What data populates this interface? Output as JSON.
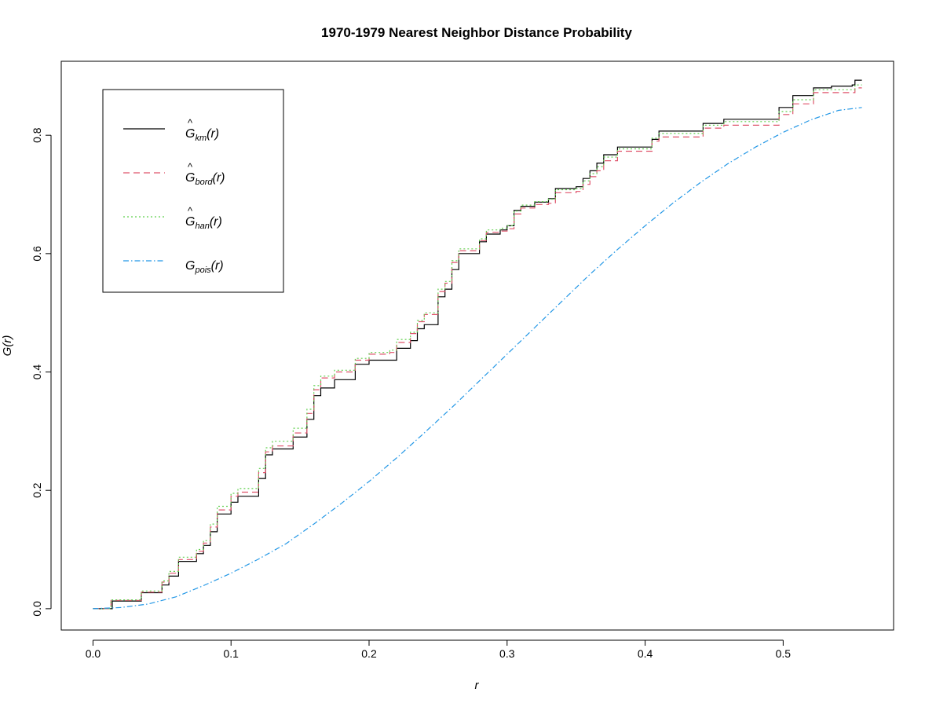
{
  "chart_data": {
    "type": "line",
    "title": "1970-1979 Nearest Neighbor Distance Probability",
    "xlabel": "r",
    "ylabel": "G(r)",
    "xlim": [
      -0.023,
      0.58
    ],
    "ylim": [
      -0.036,
      0.925
    ],
    "xticks": [
      0.0,
      0.1,
      0.2,
      0.3,
      0.4,
      0.5
    ],
    "xtick_labels": [
      "0.0",
      "0.1",
      "0.2",
      "0.3",
      "0.4",
      "0.5"
    ],
    "yticks": [
      0.0,
      0.2,
      0.4,
      0.6,
      0.8
    ],
    "ytick_labels": [
      "0.0",
      "0.2",
      "0.4",
      "0.6",
      "0.8"
    ],
    "grid": false,
    "legend_position": "top-left",
    "series": [
      {
        "name": "Ĝkm(r)",
        "base": "G",
        "hat": true,
        "sub": "km",
        "color": "#000000",
        "dash": "solid",
        "step": true,
        "points": [
          [
            0.0,
            0.0
          ],
          [
            0.012,
            0.0
          ],
          [
            0.014,
            0.013
          ],
          [
            0.033,
            0.013
          ],
          [
            0.035,
            0.027
          ],
          [
            0.046,
            0.027
          ],
          [
            0.05,
            0.04
          ],
          [
            0.055,
            0.055
          ],
          [
            0.06,
            0.055
          ],
          [
            0.062,
            0.08
          ],
          [
            0.072,
            0.08
          ],
          [
            0.075,
            0.093
          ],
          [
            0.08,
            0.107
          ],
          [
            0.085,
            0.13
          ],
          [
            0.09,
            0.16
          ],
          [
            0.095,
            0.16
          ],
          [
            0.1,
            0.18
          ],
          [
            0.105,
            0.19
          ],
          [
            0.115,
            0.19
          ],
          [
            0.12,
            0.22
          ],
          [
            0.125,
            0.26
          ],
          [
            0.13,
            0.27
          ],
          [
            0.14,
            0.27
          ],
          [
            0.145,
            0.29
          ],
          [
            0.15,
            0.29
          ],
          [
            0.155,
            0.32
          ],
          [
            0.16,
            0.36
          ],
          [
            0.165,
            0.373
          ],
          [
            0.17,
            0.373
          ],
          [
            0.175,
            0.387
          ],
          [
            0.185,
            0.387
          ],
          [
            0.19,
            0.413
          ],
          [
            0.2,
            0.42
          ],
          [
            0.215,
            0.42
          ],
          [
            0.22,
            0.44
          ],
          [
            0.23,
            0.453
          ],
          [
            0.235,
            0.473
          ],
          [
            0.24,
            0.48
          ],
          [
            0.245,
            0.48
          ],
          [
            0.25,
            0.527
          ],
          [
            0.255,
            0.54
          ],
          [
            0.26,
            0.573
          ],
          [
            0.265,
            0.6
          ],
          [
            0.275,
            0.6
          ],
          [
            0.28,
            0.62
          ],
          [
            0.285,
            0.633
          ],
          [
            0.295,
            0.64
          ],
          [
            0.3,
            0.647
          ],
          [
            0.305,
            0.673
          ],
          [
            0.31,
            0.68
          ],
          [
            0.32,
            0.687
          ],
          [
            0.33,
            0.693
          ],
          [
            0.335,
            0.71
          ],
          [
            0.35,
            0.713
          ],
          [
            0.355,
            0.727
          ],
          [
            0.36,
            0.74
          ],
          [
            0.365,
            0.753
          ],
          [
            0.37,
            0.767
          ],
          [
            0.38,
            0.78
          ],
          [
            0.4,
            0.78
          ],
          [
            0.405,
            0.793
          ],
          [
            0.41,
            0.807
          ],
          [
            0.44,
            0.807
          ],
          [
            0.442,
            0.82
          ],
          [
            0.455,
            0.82
          ],
          [
            0.457,
            0.827
          ],
          [
            0.495,
            0.827
          ],
          [
            0.497,
            0.847
          ],
          [
            0.505,
            0.847
          ],
          [
            0.507,
            0.867
          ],
          [
            0.52,
            0.867
          ],
          [
            0.522,
            0.88
          ],
          [
            0.535,
            0.883
          ],
          [
            0.55,
            0.885
          ],
          [
            0.552,
            0.893
          ],
          [
            0.557,
            0.893
          ]
        ]
      },
      {
        "name": "Ĝbord(r)",
        "base": "G",
        "hat": true,
        "sub": "bord",
        "color": "#df536b",
        "dash": "8,5",
        "step": true,
        "points": [
          [
            0.0,
            0.0
          ],
          [
            0.011,
            0.0
          ],
          [
            0.013,
            0.014
          ],
          [
            0.033,
            0.014
          ],
          [
            0.035,
            0.028
          ],
          [
            0.046,
            0.028
          ],
          [
            0.05,
            0.045
          ],
          [
            0.055,
            0.06
          ],
          [
            0.06,
            0.06
          ],
          [
            0.062,
            0.083
          ],
          [
            0.072,
            0.083
          ],
          [
            0.075,
            0.097
          ],
          [
            0.08,
            0.111
          ],
          [
            0.085,
            0.138
          ],
          [
            0.09,
            0.167
          ],
          [
            0.095,
            0.167
          ],
          [
            0.1,
            0.19
          ],
          [
            0.105,
            0.197
          ],
          [
            0.115,
            0.197
          ],
          [
            0.12,
            0.23
          ],
          [
            0.125,
            0.265
          ],
          [
            0.13,
            0.275
          ],
          [
            0.14,
            0.275
          ],
          [
            0.145,
            0.297
          ],
          [
            0.15,
            0.297
          ],
          [
            0.155,
            0.33
          ],
          [
            0.16,
            0.37
          ],
          [
            0.165,
            0.39
          ],
          [
            0.17,
            0.39
          ],
          [
            0.175,
            0.4
          ],
          [
            0.185,
            0.4
          ],
          [
            0.19,
            0.42
          ],
          [
            0.2,
            0.43
          ],
          [
            0.215,
            0.433
          ],
          [
            0.22,
            0.45
          ],
          [
            0.23,
            0.465
          ],
          [
            0.235,
            0.485
          ],
          [
            0.24,
            0.497
          ],
          [
            0.245,
            0.497
          ],
          [
            0.25,
            0.536
          ],
          [
            0.255,
            0.55
          ],
          [
            0.26,
            0.585
          ],
          [
            0.265,
            0.605
          ],
          [
            0.275,
            0.605
          ],
          [
            0.28,
            0.622
          ],
          [
            0.285,
            0.636
          ],
          [
            0.295,
            0.638
          ],
          [
            0.3,
            0.642
          ],
          [
            0.305,
            0.667
          ],
          [
            0.31,
            0.677
          ],
          [
            0.32,
            0.683
          ],
          [
            0.33,
            0.685
          ],
          [
            0.335,
            0.703
          ],
          [
            0.35,
            0.705
          ],
          [
            0.355,
            0.717
          ],
          [
            0.36,
            0.73
          ],
          [
            0.365,
            0.74
          ],
          [
            0.37,
            0.757
          ],
          [
            0.38,
            0.773
          ],
          [
            0.4,
            0.773
          ],
          [
            0.405,
            0.79
          ],
          [
            0.41,
            0.797
          ],
          [
            0.44,
            0.797
          ],
          [
            0.442,
            0.812
          ],
          [
            0.455,
            0.812
          ],
          [
            0.457,
            0.817
          ],
          [
            0.495,
            0.817
          ],
          [
            0.497,
            0.835
          ],
          [
            0.505,
            0.835
          ],
          [
            0.507,
            0.853
          ],
          [
            0.52,
            0.853
          ],
          [
            0.522,
            0.872
          ],
          [
            0.55,
            0.872
          ],
          [
            0.552,
            0.88
          ],
          [
            0.557,
            0.88
          ]
        ]
      },
      {
        "name": "Ĝhan(r)",
        "base": "G",
        "hat": true,
        "sub": "han",
        "color": "#61d04f",
        "dash": "2,3",
        "step": true,
        "points": [
          [
            0.0,
            0.0
          ],
          [
            0.011,
            0.0
          ],
          [
            0.013,
            0.015
          ],
          [
            0.033,
            0.015
          ],
          [
            0.035,
            0.03
          ],
          [
            0.046,
            0.03
          ],
          [
            0.05,
            0.047
          ],
          [
            0.055,
            0.063
          ],
          [
            0.06,
            0.063
          ],
          [
            0.062,
            0.087
          ],
          [
            0.072,
            0.087
          ],
          [
            0.075,
            0.1
          ],
          [
            0.08,
            0.115
          ],
          [
            0.085,
            0.143
          ],
          [
            0.09,
            0.173
          ],
          [
            0.095,
            0.173
          ],
          [
            0.1,
            0.195
          ],
          [
            0.105,
            0.203
          ],
          [
            0.115,
            0.203
          ],
          [
            0.12,
            0.237
          ],
          [
            0.125,
            0.272
          ],
          [
            0.13,
            0.283
          ],
          [
            0.14,
            0.283
          ],
          [
            0.145,
            0.305
          ],
          [
            0.15,
            0.305
          ],
          [
            0.155,
            0.337
          ],
          [
            0.16,
            0.377
          ],
          [
            0.165,
            0.393
          ],
          [
            0.17,
            0.393
          ],
          [
            0.175,
            0.403
          ],
          [
            0.185,
            0.403
          ],
          [
            0.19,
            0.423
          ],
          [
            0.2,
            0.433
          ],
          [
            0.215,
            0.437
          ],
          [
            0.22,
            0.455
          ],
          [
            0.23,
            0.467
          ],
          [
            0.235,
            0.487
          ],
          [
            0.24,
            0.5
          ],
          [
            0.245,
            0.5
          ],
          [
            0.25,
            0.54
          ],
          [
            0.255,
            0.553
          ],
          [
            0.26,
            0.588
          ],
          [
            0.265,
            0.608
          ],
          [
            0.275,
            0.608
          ],
          [
            0.28,
            0.625
          ],
          [
            0.285,
            0.64
          ],
          [
            0.295,
            0.643
          ],
          [
            0.3,
            0.647
          ],
          [
            0.305,
            0.672
          ],
          [
            0.31,
            0.682
          ],
          [
            0.32,
            0.688
          ],
          [
            0.33,
            0.692
          ],
          [
            0.335,
            0.708
          ],
          [
            0.35,
            0.71
          ],
          [
            0.355,
            0.723
          ],
          [
            0.36,
            0.735
          ],
          [
            0.365,
            0.747
          ],
          [
            0.37,
            0.763
          ],
          [
            0.38,
            0.777
          ],
          [
            0.4,
            0.777
          ],
          [
            0.405,
            0.795
          ],
          [
            0.41,
            0.803
          ],
          [
            0.44,
            0.803
          ],
          [
            0.442,
            0.817
          ],
          [
            0.455,
            0.817
          ],
          [
            0.457,
            0.823
          ],
          [
            0.495,
            0.823
          ],
          [
            0.497,
            0.84
          ],
          [
            0.505,
            0.84
          ],
          [
            0.507,
            0.86
          ],
          [
            0.52,
            0.86
          ],
          [
            0.522,
            0.877
          ],
          [
            0.55,
            0.877
          ],
          [
            0.552,
            0.885
          ],
          [
            0.557,
            0.885
          ]
        ]
      },
      {
        "name": "Gpois(r)",
        "base": "G",
        "hat": false,
        "sub": "pois",
        "color": "#2297e6",
        "dash": "7,3,1.5,3",
        "step": false,
        "points": [
          [
            0.0,
            0.0
          ],
          [
            0.02,
            0.002
          ],
          [
            0.04,
            0.008
          ],
          [
            0.06,
            0.02
          ],
          [
            0.08,
            0.039
          ],
          [
            0.1,
            0.06
          ],
          [
            0.12,
            0.084
          ],
          [
            0.14,
            0.11
          ],
          [
            0.16,
            0.143
          ],
          [
            0.18,
            0.178
          ],
          [
            0.2,
            0.215
          ],
          [
            0.22,
            0.255
          ],
          [
            0.24,
            0.297
          ],
          [
            0.26,
            0.34
          ],
          [
            0.28,
            0.385
          ],
          [
            0.3,
            0.43
          ],
          [
            0.32,
            0.475
          ],
          [
            0.34,
            0.52
          ],
          [
            0.36,
            0.565
          ],
          [
            0.38,
            0.607
          ],
          [
            0.4,
            0.647
          ],
          [
            0.42,
            0.685
          ],
          [
            0.44,
            0.72
          ],
          [
            0.46,
            0.752
          ],
          [
            0.48,
            0.78
          ],
          [
            0.5,
            0.805
          ],
          [
            0.52,
            0.826
          ],
          [
            0.54,
            0.842
          ],
          [
            0.557,
            0.847
          ]
        ]
      }
    ]
  }
}
